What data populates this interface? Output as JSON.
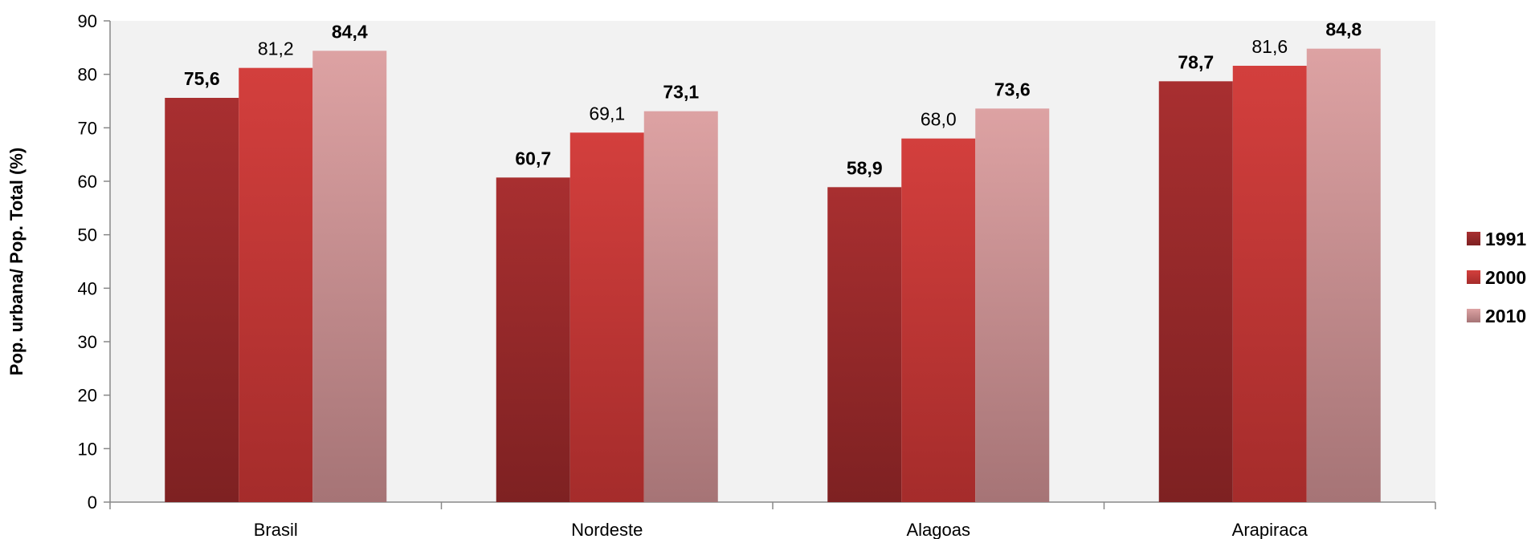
{
  "chart_data": {
    "type": "bar",
    "categories": [
      "Brasil",
      "Nordeste",
      "Alagoas",
      "Arapiraca"
    ],
    "series": [
      {
        "name": "1991",
        "values": [
          75.6,
          60.7,
          58.9,
          78.7
        ],
        "labels": [
          "75,6",
          "60,7",
          "58,9",
          "78,7"
        ],
        "label_bold": true,
        "color": "#9e2a2b"
      },
      {
        "name": "2000",
        "values": [
          81.2,
          69.1,
          68.0,
          81.6
        ],
        "labels": [
          "81,2",
          "69,1",
          "68,0",
          "81,6"
        ],
        "label_bold": false,
        "color": "#d13d3b"
      },
      {
        "name": "2010",
        "values": [
          84.4,
          73.1,
          73.6,
          84.8
        ],
        "labels": [
          "84,4",
          "73,1",
          "73,6",
          "84,8"
        ],
        "label_bold": true,
        "color": "#d99a9b"
      }
    ],
    "ylabel": "Pop. urbana/ Pop. Total (%)",
    "ylim": [
      0,
      90
    ],
    "yticks": [
      0,
      10,
      20,
      30,
      40,
      50,
      60,
      70,
      80,
      90
    ],
    "grid": false,
    "legend_position": "right"
  }
}
